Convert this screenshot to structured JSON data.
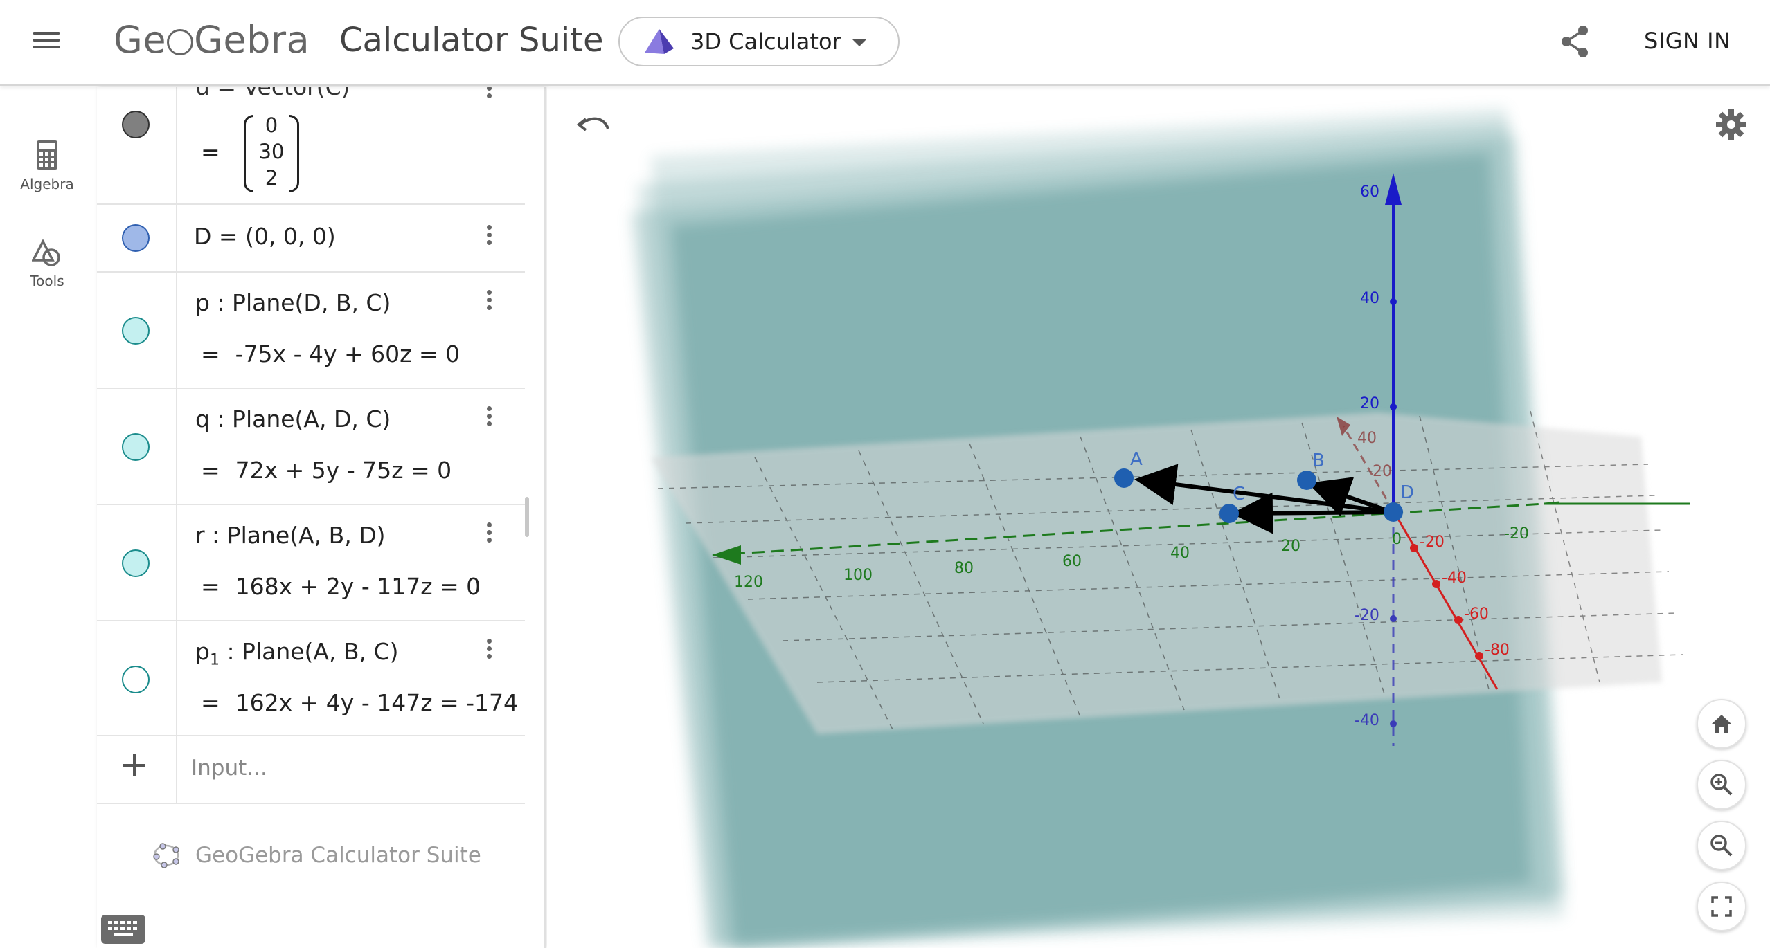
{
  "header": {
    "menu_icon": "hamburger-menu-icon",
    "logo_text_pre": "Ge",
    "logo_text_post": "Gebra",
    "suite_title": "Calculator Suite",
    "app_select_label": "3D Calculator",
    "share_icon": "share-icon",
    "sign_in_label": "SIGN IN"
  },
  "rail": {
    "items": [
      {
        "label": "Algebra",
        "icon": "calculator-icon"
      },
      {
        "label": "Tools",
        "icon": "tools-shapes-icon"
      }
    ]
  },
  "algebra": {
    "rows": [
      {
        "name": "u_vector_partial",
        "definition": "u = Vector(C)",
        "vector": [
          "0",
          "30",
          "2"
        ],
        "color": "#808080"
      },
      {
        "name": "D",
        "definition": "D = (0, 0, 0)",
        "color": "#9fb8e8"
      },
      {
        "name": "p",
        "definition": "p : Plane(D, B, C)",
        "output": "-75x - 4y + 60z = 0",
        "color": "#c4f0f0"
      },
      {
        "name": "q",
        "definition": "q : Plane(A, D, C)",
        "output": "72x + 5y - 75z = 0",
        "color": "#c4f0f0"
      },
      {
        "name": "r",
        "definition": "r : Plane(A, B, D)",
        "output": "168x + 2y - 117z = 0",
        "color": "#c4f0f0"
      },
      {
        "name": "p1",
        "definition_pre": "p",
        "definition_sub": "1",
        "definition_post": " : Plane(A, B, C)",
        "output": "162x + 4y - 147z = -174",
        "color": "#ffffff"
      }
    ],
    "equals": "=",
    "input_placeholder": "Input...",
    "footer_brand": "GeoGebra Calculator Suite"
  },
  "graphics": {
    "z_ticks": [
      "60",
      "40",
      "20",
      "-20",
      "-40"
    ],
    "y_ticks": [
      "120",
      "100",
      "80",
      "60",
      "40",
      "20",
      "0",
      "-20"
    ],
    "x_ticks": [
      "-20",
      "-40",
      "-60",
      "-80"
    ],
    "x_back_ticks": [
      "40",
      "20"
    ],
    "points": [
      "A",
      "B",
      "C",
      "D"
    ],
    "colors": {
      "x_axis": "#d32020",
      "y_axis": "#1e7a1e",
      "z_axis": "#1a1ac8",
      "plane": "#6aa3a3",
      "points": "#1f5fb0"
    }
  }
}
